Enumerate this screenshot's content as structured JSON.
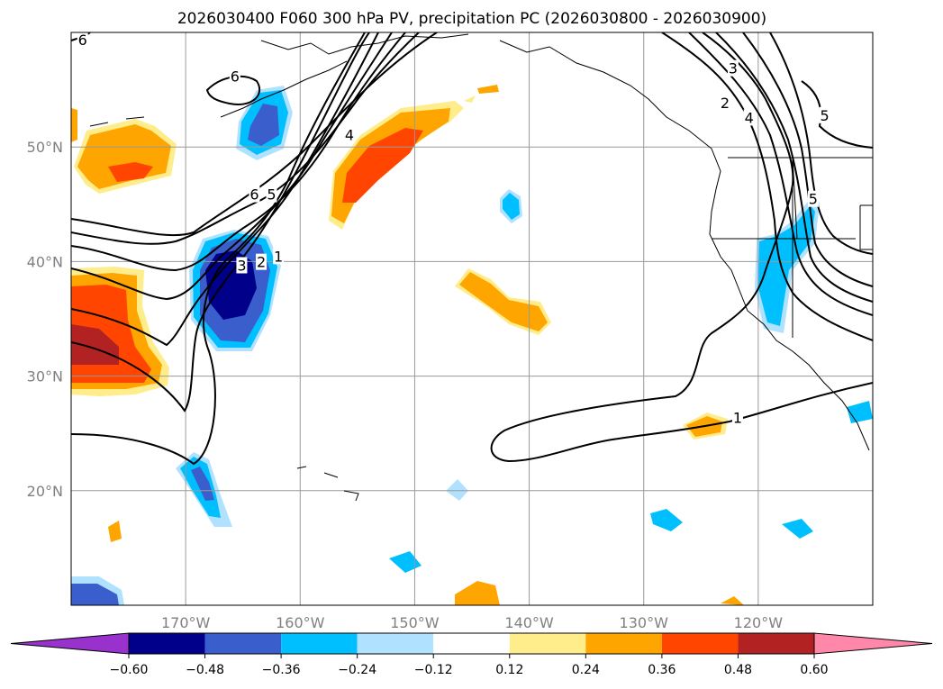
{
  "chart_data": {
    "type": "map",
    "title": "2026030400 F060 300 hPa PV, precipitation PC (2026030800 - 2026030900)",
    "projection": "lat-lon",
    "lon_range": [
      -180,
      -110
    ],
    "lat_range": [
      10,
      60
    ],
    "lon_ticks": [
      {
        "value": -170,
        "label": "170°W"
      },
      {
        "value": -160,
        "label": "160°W"
      },
      {
        "value": -150,
        "label": "150°W"
      },
      {
        "value": -140,
        "label": "140°W"
      },
      {
        "value": -130,
        "label": "130°W"
      },
      {
        "value": -120,
        "label": "120°W"
      }
    ],
    "lat_ticks": [
      {
        "value": 50,
        "label": "50°N"
      },
      {
        "value": 40,
        "label": "40°N"
      },
      {
        "value": 30,
        "label": "30°N"
      },
      {
        "value": 20,
        "label": "20°N"
      }
    ],
    "grid": true,
    "colorbar": {
      "orientation": "horizontal",
      "extend": "both",
      "boundaries": [
        -0.6,
        -0.48,
        -0.36,
        -0.24,
        -0.12,
        0.12,
        0.24,
        0.36,
        0.48,
        0.6
      ],
      "labels": [
        "−0.60",
        "−0.48",
        "−0.36",
        "−0.24",
        "−0.12",
        "0.12",
        "0.24",
        "0.36",
        "0.48",
        "0.60"
      ],
      "colors": [
        "#9932cc",
        "#00008b",
        "#3a5fcd",
        "#00bfff",
        "#b0e2ff",
        "#ffffff",
        "#ffec8b",
        "#ffa500",
        "#ff4500",
        "#b22222",
        "#ff88aa"
      ]
    },
    "pv_contour_labels": [
      "1",
      "2",
      "3",
      "4",
      "5",
      "6"
    ],
    "contour_labels": [
      {
        "text": "6",
        "lon": -179,
        "lat": 59.3
      },
      {
        "text": "6",
        "lon": -165.7,
        "lat": 56.1
      },
      {
        "text": "4",
        "lon": -155.7,
        "lat": 51.0
      },
      {
        "text": "6",
        "lon": -164.0,
        "lat": 45.8
      },
      {
        "text": "5",
        "lon": -162.5,
        "lat": 45.8
      },
      {
        "text": "3",
        "lon": -165.1,
        "lat": 39.6
      },
      {
        "text": "2",
        "lon": -163.4,
        "lat": 39.9
      },
      {
        "text": "1",
        "lon": -161.9,
        "lat": 40.4
      },
      {
        "text": "1",
        "lon": -121.8,
        "lat": 26.3
      },
      {
        "text": "3",
        "lon": -122.2,
        "lat": 56.8
      },
      {
        "text": "2",
        "lon": -122.9,
        "lat": 53.8
      },
      {
        "text": "4",
        "lon": -120.8,
        "lat": 52.5
      },
      {
        "text": "5",
        "lon": -114.2,
        "lat": 52.7
      },
      {
        "text": "5",
        "lon": -115.2,
        "lat": 45.4
      }
    ],
    "precip_regions": [
      {
        "level": 0.36,
        "lon": -175.5,
        "lat": 35.5,
        "note": "strong positive west edge"
      },
      {
        "level": 0.48,
        "lon": -177.5,
        "lat": 32.5,
        "note": "max positive core"
      },
      {
        "level": 0.24,
        "lon": -174.5,
        "lat": 47.5,
        "note": "positive area near dateline"
      },
      {
        "level": 0.36,
        "lon": -153,
        "lat": 49,
        "note": "positive band Gulf of Alaska"
      },
      {
        "level": 0.24,
        "lon": -142.5,
        "lat": 37,
        "note": "positive streak"
      },
      {
        "level": -0.6,
        "lon": -165.5,
        "lat": 38,
        "note": "strong negative core"
      },
      {
        "level": -0.36,
        "lon": -166.5,
        "lat": 52.5,
        "note": "negative near Aleutians"
      },
      {
        "level": -0.24,
        "lon": -117,
        "lat": 37.5,
        "note": "negative US west coast"
      },
      {
        "level": 0.24,
        "lon": -124.5,
        "lat": 25.8,
        "note": "small positive"
      }
    ]
  }
}
